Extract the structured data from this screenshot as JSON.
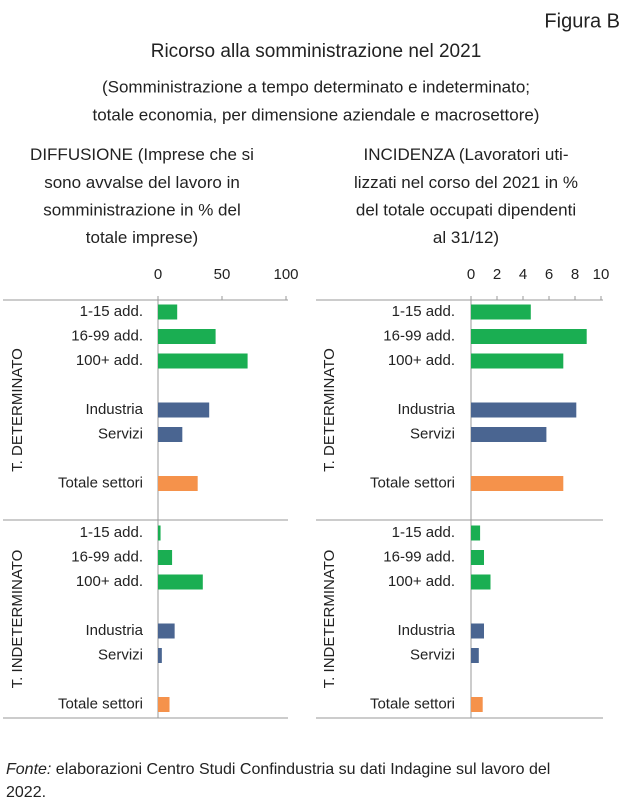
{
  "header": {
    "figure_label": "Figura B",
    "title": "Ricorso alla somministrazione nel 2021",
    "subtitle_lines": [
      "(Somministrazione a tempo determinato e indeterminato;",
      "totale economia, per dimensione aziendale e macrosettore)"
    ]
  },
  "chart_data": [
    {
      "type": "bar",
      "orientation": "horizontal",
      "title_keyword": "DIFFUSIONE",
      "title_lines": [
        " (Imprese che si",
        "sono avvalse del lavoro in",
        "somministrazione in % del",
        "totale imprese)"
      ],
      "xlim": [
        0,
        100
      ],
      "xticks": [
        0,
        50,
        100
      ],
      "groups": [
        {
          "name": "T. DETERMINATO",
          "categories": [
            "1-15 add.",
            "16-99 add.",
            "100+ add.",
            "Industria",
            "Servizi",
            "Totale settori"
          ],
          "values": [
            15,
            45,
            70,
            40,
            19,
            31
          ]
        },
        {
          "name": "T. INDETERMINATO",
          "categories": [
            "1-15 add.",
            "16-99 add.",
            "100+ add.",
            "Industria",
            "Servizi",
            "Totale settori"
          ],
          "values": [
            2,
            11,
            35,
            13,
            3,
            9
          ]
        }
      ],
      "category_colors": [
        "#1aae52",
        "#1aae52",
        "#1aae52",
        "#4a6591",
        "#4a6591",
        "#f5924b"
      ]
    },
    {
      "type": "bar",
      "orientation": "horizontal",
      "title_keyword": "INCIDENZA",
      "title_lines": [
        " (Lavoratori uti-",
        "lizzati nel corso del 2021 in %",
        "del totale occupati dipendenti",
        "al 31/12)"
      ],
      "xlim": [
        0,
        10
      ],
      "xticks": [
        0,
        2,
        4,
        6,
        8,
        10
      ],
      "groups": [
        {
          "name": "T. DETERMINATO",
          "categories": [
            "1-15 add.",
            "16-99 add.",
            "100+ add.",
            "Industria",
            "Servizi",
            "Totale settori"
          ],
          "values": [
            4.6,
            8.9,
            7.1,
            8.1,
            5.8,
            7.1
          ]
        },
        {
          "name": "T. INDETERMINATO",
          "categories": [
            "1-15 add.",
            "16-99 add.",
            "100+ add.",
            "Industria",
            "Servizi",
            "Totale settori"
          ],
          "values": [
            0.7,
            1.0,
            1.5,
            1.0,
            0.6,
            0.9
          ]
        }
      ],
      "category_colors": [
        "#1aae52",
        "#1aae52",
        "#1aae52",
        "#4a6591",
        "#4a6591",
        "#f5924b"
      ]
    }
  ],
  "footer": {
    "source_label": "Fonte:",
    "lines": [
      " elaborazioni Centro Studi Confindustria su dati Indagine sul lavoro del",
      "2022."
    ]
  }
}
